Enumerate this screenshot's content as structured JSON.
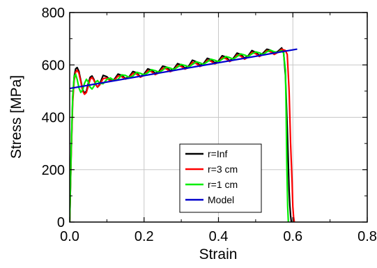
{
  "chart_data": {
    "type": "line",
    "title": "",
    "xlabel": "Strain",
    "ylabel": "Stress [MPa]",
    "xlim": [
      0.0,
      0.8
    ],
    "ylim": [
      0,
      800
    ],
    "xticks": [
      "0.0",
      "0.2",
      "0.4",
      "0.6",
      "0.8"
    ],
    "yticks": [
      "0",
      "200",
      "400",
      "600",
      "800"
    ],
    "grid": true,
    "legend_position": "lower-center",
    "series": [
      {
        "name": "r=Inf",
        "color": "#000000",
        "x": [
          0.0,
          0.004,
          0.008,
          0.012,
          0.016,
          0.02,
          0.025,
          0.03,
          0.035,
          0.04,
          0.045,
          0.05,
          0.055,
          0.06,
          0.065,
          0.07,
          0.075,
          0.08,
          0.09,
          0.1,
          0.11,
          0.12,
          0.13,
          0.14,
          0.15,
          0.16,
          0.17,
          0.18,
          0.19,
          0.2,
          0.21,
          0.22,
          0.23,
          0.24,
          0.25,
          0.26,
          0.27,
          0.28,
          0.29,
          0.3,
          0.31,
          0.32,
          0.33,
          0.34,
          0.35,
          0.36,
          0.37,
          0.38,
          0.39,
          0.4,
          0.41,
          0.42,
          0.43,
          0.44,
          0.45,
          0.46,
          0.47,
          0.48,
          0.49,
          0.5,
          0.51,
          0.52,
          0.53,
          0.54,
          0.55,
          0.56,
          0.57,
          0.575,
          0.58,
          0.585,
          0.588,
          0.59,
          0.592,
          0.594,
          0.596
        ],
        "y": [
          0,
          260,
          470,
          555,
          585,
          590,
          575,
          540,
          505,
          492,
          500,
          530,
          553,
          558,
          545,
          525,
          515,
          525,
          560,
          555,
          540,
          545,
          565,
          560,
          548,
          555,
          575,
          570,
          555,
          565,
          585,
          580,
          568,
          575,
          595,
          592,
          578,
          585,
          605,
          600,
          588,
          595,
          618,
          612,
          598,
          605,
          625,
          620,
          608,
          615,
          635,
          630,
          616,
          625,
          645,
          640,
          626,
          635,
          655,
          648,
          636,
          645,
          660,
          656,
          645,
          652,
          665,
          650,
          560,
          360,
          220,
          120,
          60,
          25,
          0
        ]
      },
      {
        "name": "r=3 cm",
        "color": "#ff0000",
        "x": [
          0.0,
          0.004,
          0.008,
          0.012,
          0.016,
          0.02,
          0.025,
          0.03,
          0.035,
          0.04,
          0.045,
          0.05,
          0.055,
          0.06,
          0.065,
          0.07,
          0.075,
          0.08,
          0.09,
          0.1,
          0.11,
          0.12,
          0.13,
          0.14,
          0.15,
          0.16,
          0.17,
          0.18,
          0.19,
          0.2,
          0.21,
          0.22,
          0.23,
          0.24,
          0.25,
          0.26,
          0.27,
          0.28,
          0.29,
          0.3,
          0.31,
          0.32,
          0.33,
          0.34,
          0.35,
          0.36,
          0.37,
          0.38,
          0.39,
          0.4,
          0.41,
          0.42,
          0.43,
          0.44,
          0.45,
          0.46,
          0.47,
          0.48,
          0.49,
          0.5,
          0.51,
          0.52,
          0.53,
          0.54,
          0.55,
          0.56,
          0.57,
          0.58,
          0.585,
          0.59,
          0.594,
          0.598,
          0.6,
          0.602,
          0.604
        ],
        "y": [
          0,
          250,
          455,
          540,
          572,
          580,
          568,
          535,
          500,
          488,
          495,
          520,
          545,
          552,
          542,
          524,
          516,
          522,
          548,
          550,
          538,
          542,
          558,
          555,
          546,
          552,
          568,
          565,
          553,
          560,
          578,
          574,
          563,
          570,
          588,
          585,
          574,
          580,
          598,
          594,
          584,
          590,
          610,
          606,
          594,
          600,
          618,
          614,
          604,
          610,
          628,
          624,
          613,
          620,
          638,
          634,
          622,
          630,
          648,
          643,
          632,
          640,
          655,
          650,
          640,
          648,
          660,
          655,
          640,
          500,
          300,
          150,
          60,
          20,
          0
        ]
      },
      {
        "name": "r=1 cm",
        "color": "#00ee00",
        "x": [
          0.0,
          0.004,
          0.008,
          0.012,
          0.016,
          0.02,
          0.025,
          0.03,
          0.035,
          0.04,
          0.045,
          0.05,
          0.055,
          0.06,
          0.065,
          0.07,
          0.075,
          0.08,
          0.09,
          0.1,
          0.11,
          0.12,
          0.13,
          0.14,
          0.15,
          0.16,
          0.17,
          0.18,
          0.19,
          0.2,
          0.21,
          0.22,
          0.23,
          0.24,
          0.25,
          0.26,
          0.27,
          0.28,
          0.29,
          0.3,
          0.31,
          0.32,
          0.33,
          0.34,
          0.35,
          0.36,
          0.37,
          0.38,
          0.39,
          0.4,
          0.41,
          0.42,
          0.43,
          0.44,
          0.45,
          0.46,
          0.47,
          0.48,
          0.49,
          0.5,
          0.51,
          0.52,
          0.53,
          0.54,
          0.55,
          0.56,
          0.57,
          0.575,
          0.58,
          0.582,
          0.584,
          0.586,
          0.588
        ],
        "y": [
          0,
          270,
          480,
          555,
          565,
          545,
          512,
          495,
          505,
          530,
          545,
          535,
          515,
          508,
          518,
          535,
          540,
          530,
          528,
          545,
          550,
          540,
          545,
          562,
          560,
          552,
          558,
          572,
          568,
          562,
          570,
          582,
          578,
          572,
          580,
          592,
          588,
          582,
          592,
          602,
          598,
          592,
          602,
          612,
          608,
          602,
          612,
          622,
          618,
          612,
          622,
          632,
          628,
          622,
          632,
          642,
          638,
          632,
          642,
          650,
          646,
          640,
          650,
          656,
          650,
          648,
          655,
          645,
          580,
          420,
          200,
          60,
          0
        ]
      },
      {
        "name": "Model",
        "color": "#0000cc",
        "x": [
          0.0,
          0.61
        ],
        "y": [
          510,
          660
        ]
      }
    ]
  }
}
